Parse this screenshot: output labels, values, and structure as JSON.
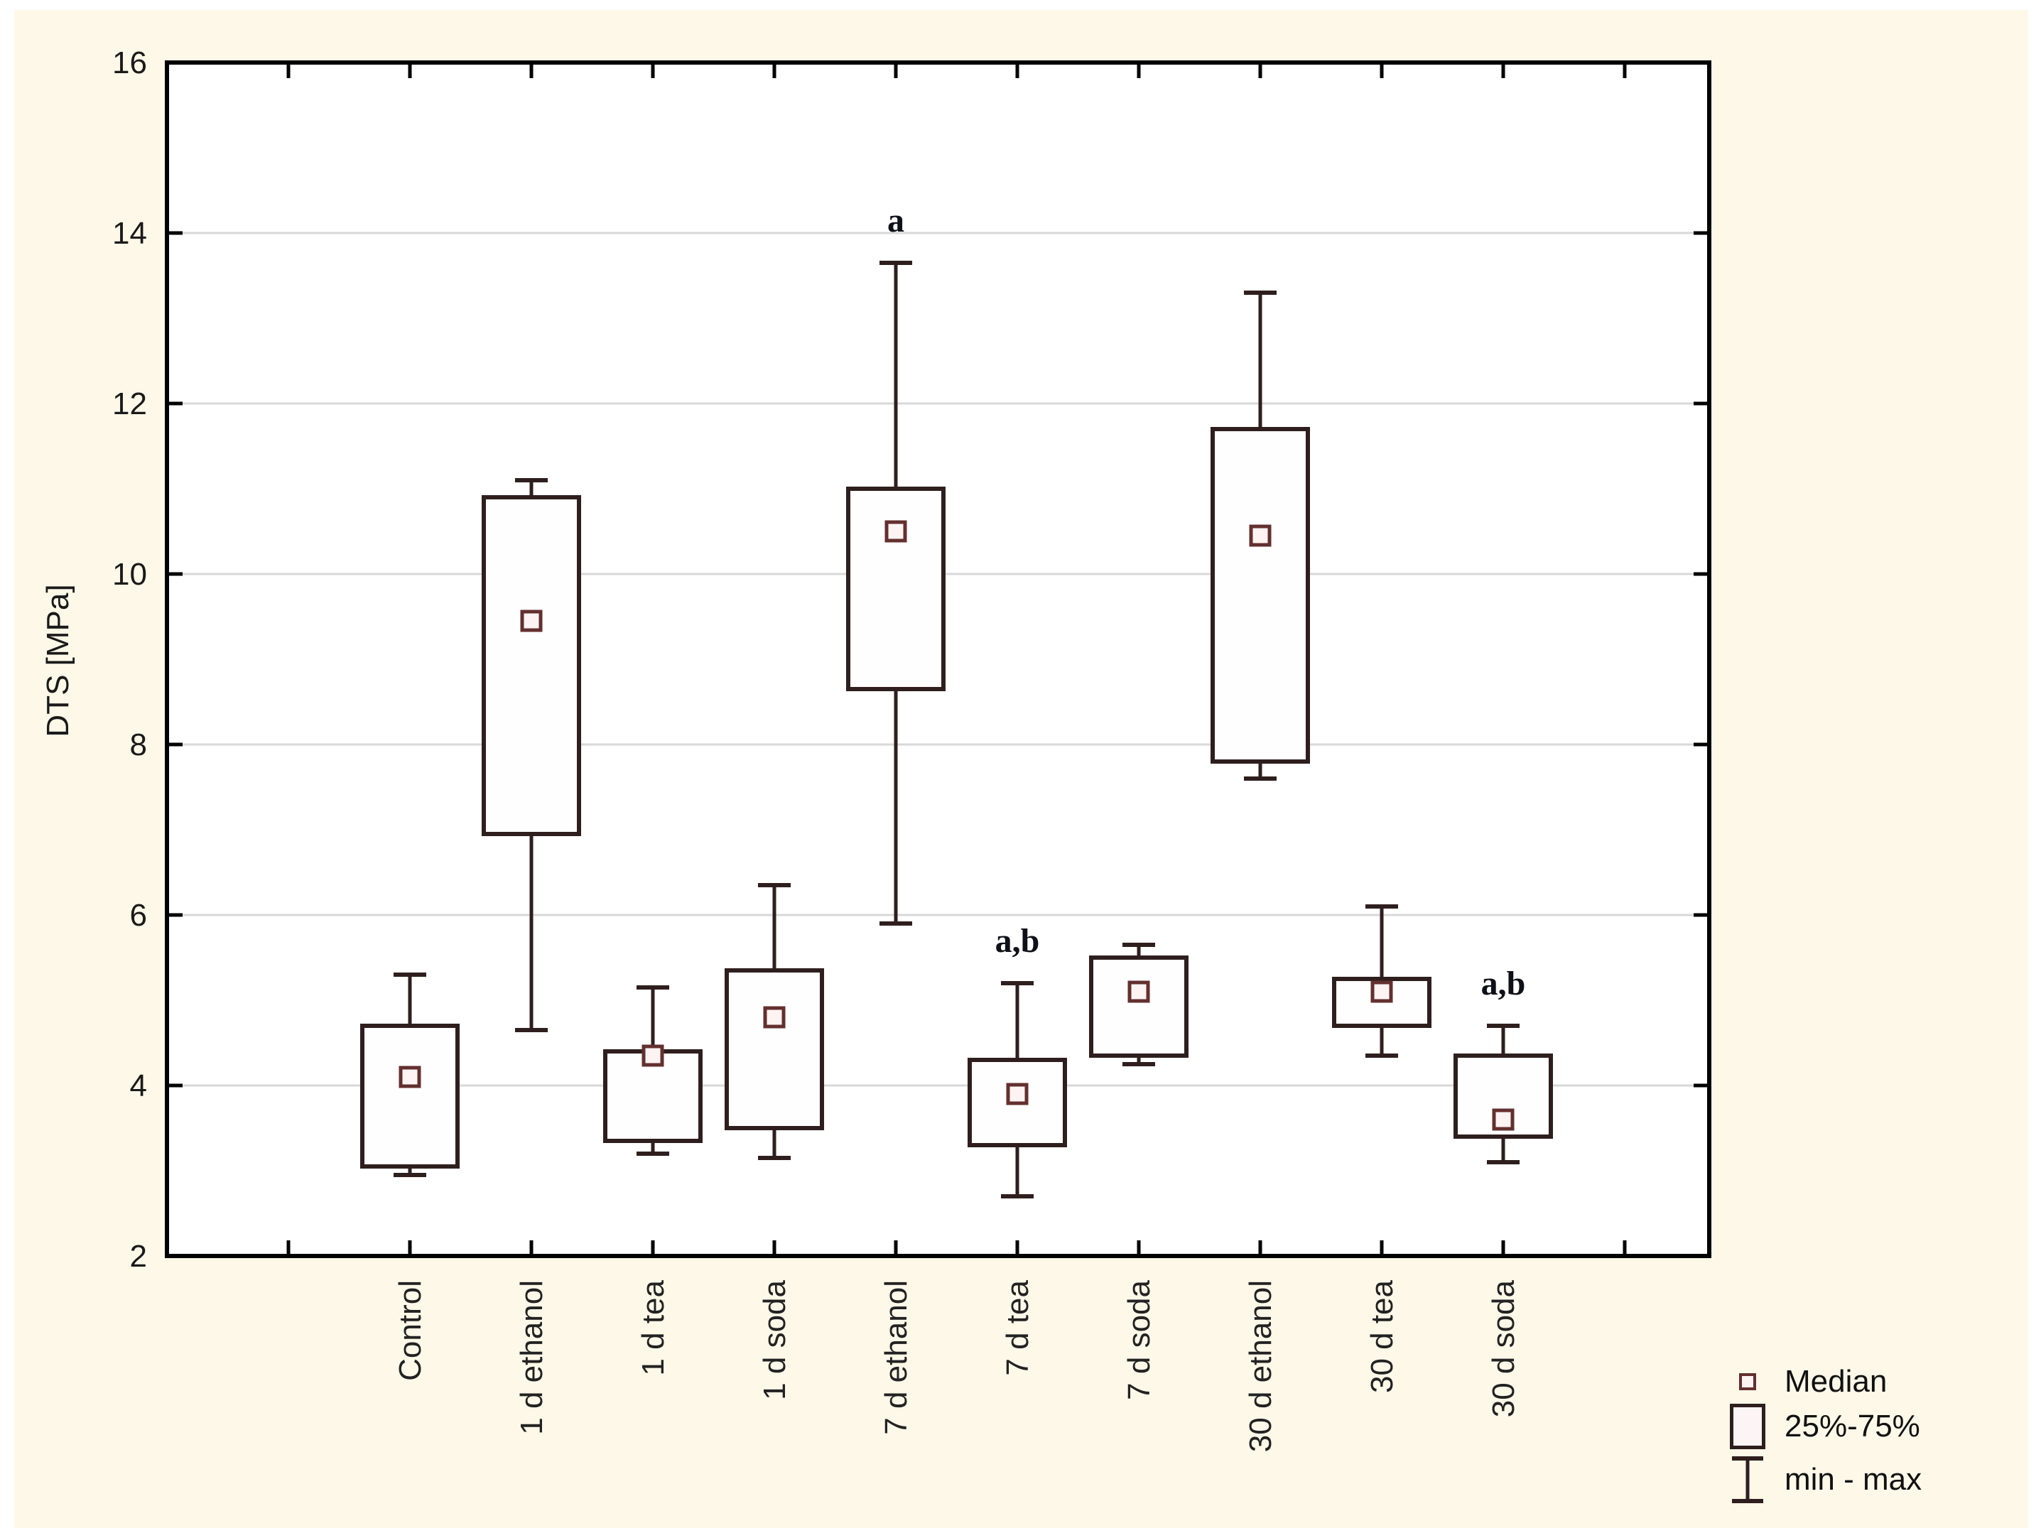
{
  "figure": {
    "page_background": "#ffffff",
    "canvas_background": "#fdf8e8"
  },
  "chart_data": {
    "type": "boxplot",
    "title": "",
    "xlabel": "",
    "ylabel": "DTS [MPa]",
    "ylim": [
      2,
      16
    ],
    "yticks": [
      2,
      4,
      6,
      8,
      10,
      12,
      14,
      16
    ],
    "grid": "horizontal",
    "legend_position": "bottom-right",
    "categories": [
      "Control",
      "1 d ethanol",
      "1 d tea",
      "1 d soda",
      "7 d ethanol",
      "7 d tea",
      "7 d soda",
      "30 d ethanol",
      "30 d tea",
      "30 d soda"
    ],
    "boxes": [
      {
        "label": "Control",
        "min": 2.95,
        "q1": 3.05,
        "median": 4.1,
        "q3": 4.7,
        "max": 5.3,
        "annotation": ""
      },
      {
        "label": "1 d ethanol",
        "min": 4.65,
        "q1": 6.95,
        "median": 9.45,
        "q3": 10.9,
        "max": 11.1,
        "annotation": ""
      },
      {
        "label": "1 d tea",
        "min": 3.2,
        "q1": 3.35,
        "median": 4.35,
        "q3": 4.4,
        "max": 5.15,
        "annotation": ""
      },
      {
        "label": "1 d soda",
        "min": 3.15,
        "q1": 3.5,
        "median": 4.8,
        "q3": 5.35,
        "max": 6.35,
        "annotation": ""
      },
      {
        "label": "7 d ethanol",
        "min": 5.9,
        "q1": 8.65,
        "median": 10.5,
        "q3": 11.0,
        "max": 13.65,
        "annotation": "a"
      },
      {
        "label": "7 d tea",
        "min": 2.7,
        "q1": 3.3,
        "median": 3.9,
        "q3": 4.3,
        "max": 5.2,
        "annotation": "a,b"
      },
      {
        "label": "7 d soda",
        "min": 4.25,
        "q1": 4.35,
        "median": 5.1,
        "q3": 5.5,
        "max": 5.65,
        "annotation": ""
      },
      {
        "label": "30 d ethanol",
        "min": 7.6,
        "q1": 7.8,
        "median": 10.45,
        "q3": 11.7,
        "max": 13.3,
        "annotation": ""
      },
      {
        "label": "30 d tea",
        "min": 4.35,
        "q1": 4.7,
        "median": 5.1,
        "q3": 5.25,
        "max": 6.1,
        "annotation": ""
      },
      {
        "label": "30 d soda",
        "min": 3.1,
        "q1": 3.4,
        "median": 3.6,
        "q3": 4.35,
        "max": 4.7,
        "annotation": "a,b"
      }
    ],
    "legend": {
      "items": [
        {
          "symbol": "median-square",
          "label": "Median"
        },
        {
          "symbol": "iqr-box",
          "label": "25%-75%"
        },
        {
          "symbol": "minmax-whisker",
          "label": "min - max"
        }
      ]
    },
    "colors": {
      "box_stroke": "#2e1f1e",
      "median_stroke": "#63302f",
      "median_fill": "#fdf3f3",
      "box_fill": "#fffefe",
      "gridline": "#d8d8d8",
      "axis": "#000000",
      "plot_background": "#ffffff",
      "annotation": "#101018"
    }
  }
}
